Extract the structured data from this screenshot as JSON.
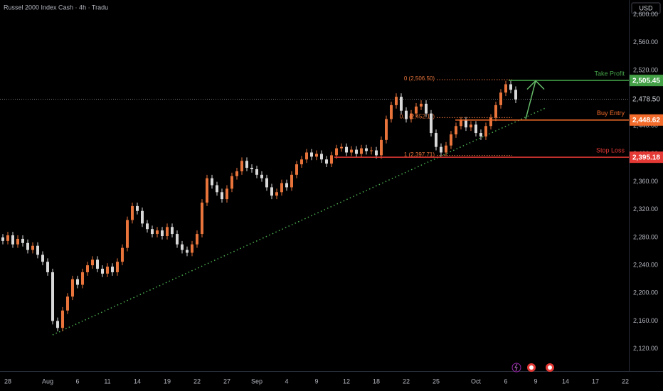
{
  "chart_data": {
    "type": "candlestick",
    "title": "Russel 2000 Index Cash · 4h · Tradu",
    "currency": "USD",
    "categories": [
      null,
      "28",
      null,
      null,
      null,
      null,
      null,
      null,
      null,
      "Aug",
      null,
      null,
      null,
      null,
      null,
      "6",
      null,
      null,
      null,
      null,
      null,
      "11",
      null,
      null,
      null,
      null,
      null,
      "14",
      null,
      null,
      null,
      null,
      null,
      "19",
      null,
      null,
      null,
      null,
      null,
      "22",
      null,
      null,
      null,
      null,
      null,
      "27",
      null,
      null,
      null,
      null,
      null,
      "Sep",
      null,
      null,
      null,
      null,
      null,
      "4",
      null,
      null,
      null,
      null,
      null,
      "9",
      null,
      null,
      null,
      null,
      null,
      "12",
      null,
      null,
      null,
      null,
      null,
      "18",
      null,
      null,
      null,
      null,
      null,
      "22",
      null,
      null,
      null,
      null,
      null,
      "25",
      null,
      null,
      null,
      null,
      null,
      null,
      null,
      "Oct",
      null,
      null,
      null,
      null,
      null,
      "6",
      null,
      null,
      null,
      null,
      null,
      "9",
      null,
      null,
      null,
      null,
      null,
      "14",
      null,
      null,
      null,
      null,
      null,
      "17",
      null,
      null,
      null,
      null,
      null,
      "22"
    ],
    "open": [
      2280,
      2275,
      2283,
      2270,
      2278,
      2272,
      2262,
      2268,
      2255,
      2245,
      2230,
      2160,
      2150,
      2175,
      2195,
      2220,
      2212,
      2230,
      2240,
      2248,
      2235,
      2228,
      2238,
      2230,
      2245,
      2265,
      2305,
      2325,
      2318,
      2300,
      2292,
      2285,
      2290,
      2282,
      2295,
      2285,
      2270,
      2262,
      2258,
      2270,
      2285,
      2330,
      2365,
      2355,
      2345,
      2335,
      2350,
      2368,
      2375,
      2390,
      2380,
      2378,
      2370,
      2365,
      2352,
      2340,
      2345,
      2358,
      2352,
      2370,
      2385,
      2392,
      2402,
      2396,
      2400,
      2392,
      2386,
      2398,
      2408,
      2410,
      2402,
      2406,
      2400,
      2408,
      2404,
      2405,
      2398,
      2420,
      2450,
      2470,
      2482,
      2462,
      2450,
      2458,
      2468,
      2472,
      2458,
      2430,
      2410,
      2402,
      2412,
      2428,
      2440,
      2448,
      2438,
      2442,
      2430,
      2425,
      2440,
      2452,
      2470,
      2488,
      2500,
      2492,
      null,
      null,
      null,
      null,
      null,
      null,
      null,
      null,
      null,
      null,
      null,
      null,
      null,
      null,
      null,
      null,
      null,
      null,
      null,
      null,
      null,
      null
    ],
    "high": [
      2285,
      2288,
      2288,
      2283,
      2283,
      2277,
      2273,
      2273,
      2260,
      2250,
      2235,
      2165,
      2180,
      2200,
      2225,
      2225,
      2235,
      2245,
      2253,
      2253,
      2240,
      2243,
      2243,
      2250,
      2270,
      2310,
      2330,
      2330,
      2323,
      2305,
      2297,
      2295,
      2295,
      2300,
      2300,
      2290,
      2275,
      2267,
      2275,
      2290,
      2335,
      2370,
      2370,
      2360,
      2350,
      2355,
      2373,
      2380,
      2395,
      2395,
      2385,
      2383,
      2375,
      2370,
      2357,
      2350,
      2363,
      2363,
      2375,
      2390,
      2397,
      2407,
      2407,
      2405,
      2405,
      2397,
      2403,
      2413,
      2415,
      2415,
      2411,
      2411,
      2413,
      2413,
      2410,
      2410,
      2425,
      2455,
      2475,
      2487,
      2487,
      2467,
      2463,
      2473,
      2477,
      2477,
      2463,
      2435,
      2415,
      2417,
      2433,
      2445,
      2453,
      2453,
      2447,
      2447,
      2435,
      2445,
      2457,
      2475,
      2493,
      2505,
      2505,
      2497,
      null,
      null,
      null,
      null,
      null,
      null,
      null,
      null,
      null,
      null,
      null,
      null,
      null,
      null,
      null,
      null,
      null,
      null,
      null,
      null,
      null,
      null
    ],
    "low": [
      2270,
      2270,
      2265,
      2265,
      2267,
      2257,
      2257,
      2250,
      2240,
      2225,
      2155,
      2145,
      2145,
      2170,
      2190,
      2207,
      2207,
      2225,
      2235,
      2230,
      2223,
      2223,
      2225,
      2225,
      2240,
      2260,
      2300,
      2313,
      2295,
      2287,
      2280,
      2280,
      2277,
      2277,
      2280,
      2265,
      2257,
      2253,
      2253,
      2265,
      2280,
      2325,
      2350,
      2340,
      2330,
      2330,
      2345,
      2363,
      2370,
      2375,
      2373,
      2365,
      2360,
      2347,
      2335,
      2335,
      2340,
      2347,
      2347,
      2365,
      2380,
      2387,
      2391,
      2391,
      2387,
      2381,
      2381,
      2393,
      2403,
      2397,
      2397,
      2395,
      2395,
      2399,
      2399,
      2393,
      2393,
      2415,
      2445,
      2465,
      2457,
      2445,
      2445,
      2453,
      2463,
      2453,
      2425,
      2405,
      2397,
      2397,
      2407,
      2423,
      2435,
      2433,
      2433,
      2425,
      2420,
      2420,
      2435,
      2447,
      2465,
      2483,
      2487,
      2473,
      null,
      null,
      null,
      null,
      null,
      null,
      null,
      null,
      null,
      null,
      null,
      null,
      null,
      null,
      null,
      null,
      null,
      null,
      null,
      null,
      null,
      null
    ],
    "close": [
      2275,
      2283,
      2270,
      2278,
      2272,
      2262,
      2268,
      2255,
      2245,
      2230,
      2160,
      2150,
      2175,
      2195,
      2220,
      2212,
      2230,
      2240,
      2248,
      2235,
      2228,
      2238,
      2230,
      2245,
      2265,
      2305,
      2325,
      2318,
      2300,
      2292,
      2285,
      2290,
      2282,
      2295,
      2285,
      2270,
      2262,
      2258,
      2270,
      2285,
      2330,
      2365,
      2355,
      2345,
      2335,
      2350,
      2368,
      2375,
      2390,
      2380,
      2378,
      2370,
      2365,
      2352,
      2340,
      2345,
      2358,
      2352,
      2370,
      2385,
      2392,
      2402,
      2396,
      2400,
      2392,
      2386,
      2398,
      2408,
      2410,
      2402,
      2406,
      2400,
      2408,
      2404,
      2405,
      2398,
      2420,
      2450,
      2470,
      2482,
      2462,
      2450,
      2458,
      2468,
      2472,
      2458,
      2430,
      2410,
      2402,
      2412,
      2428,
      2440,
      2448,
      2438,
      2442,
      2430,
      2425,
      2440,
      2452,
      2470,
      2488,
      2500,
      2492,
      2478,
      null,
      null,
      null,
      null,
      null,
      null,
      null,
      null,
      null,
      null,
      null,
      null,
      null,
      null,
      null,
      null,
      null,
      null,
      null,
      null,
      null,
      null
    ],
    "up_color": "#e8743b",
    "down_color": "#d8d8d8",
    "ylim": [
      2088,
      2621
    ],
    "yticks": [
      {
        "value": 2120,
        "label": "2,120.00"
      },
      {
        "value": 2160,
        "label": "2,160.00"
      },
      {
        "value": 2200,
        "label": "2,200.00"
      },
      {
        "value": 2240,
        "label": "2,240.00"
      },
      {
        "value": 2280,
        "label": "2,280.00"
      },
      {
        "value": 2320,
        "label": "2,320.00"
      },
      {
        "value": 2360,
        "label": "2,360.00"
      },
      {
        "value": 2400,
        "label": "2,400.00"
      },
      {
        "value": 2440,
        "label": "2,440.00"
      },
      {
        "value": 2480,
        "label": "2,480.00"
      },
      {
        "value": 2520,
        "label": "2,520.00"
      },
      {
        "value": 2560,
        "label": "2,560.00"
      },
      {
        "value": 2600,
        "label": "2,600.00"
      }
    ],
    "last_price": {
      "value": 2478.5,
      "value_label": "2,478.50"
    },
    "levels": [
      {
        "name": "Take Profit",
        "value": 2505.45,
        "value_label": "2,505.45",
        "color": "#43a047"
      },
      {
        "name": "Buy Entry",
        "value": 2448.62,
        "value_label": "2,448.62",
        "color": "#f26b2a"
      },
      {
        "name": "Stop Loss",
        "value": 2395.18,
        "value_label": "2,395.18",
        "color": "#e53935"
      }
    ],
    "fib": [
      {
        "label": "0 (2,506.50)",
        "value": 2506.5
      },
      {
        "label": "0.5 (2,452.11)",
        "value": 2452.11
      },
      {
        "label": "1 (2,397.71)",
        "value": 2397.71
      }
    ],
    "fib_color": "#e8743b",
    "trendline": {
      "x": [
        10,
        109
      ],
      "y": [
        2140,
        2466
      ],
      "color": "#4caf50"
    },
    "arrow": {
      "x": [
        105,
        107
      ],
      "y": [
        2450,
        2505
      ],
      "color": "#66bb6a"
    }
  }
}
